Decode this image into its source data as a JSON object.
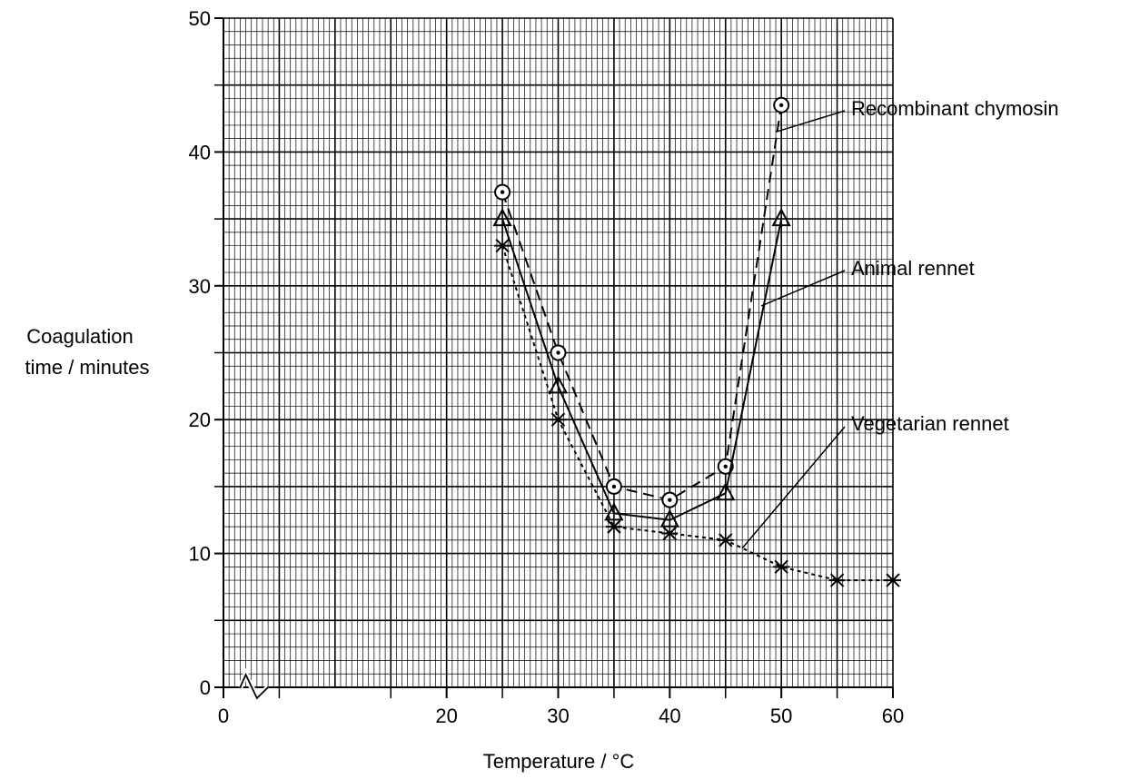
{
  "chart_data": {
    "type": "line",
    "title": "",
    "xlabel": "Temperature / °C",
    "ylabel_lines": [
      "Coagulation",
      "time / minutes"
    ],
    "xlim": [
      0,
      60
    ],
    "ylim": [
      0,
      50
    ],
    "x_axis_break": true,
    "x_ticks": [
      0,
      20,
      30,
      40,
      50,
      60
    ],
    "y_ticks": [
      0,
      10,
      20,
      30,
      40,
      50
    ],
    "grid": true,
    "legend_placement": "right (leader-line labels)",
    "series": [
      {
        "name": "Recombinant chymosin",
        "marker": "circle-dot",
        "line_style": "long-dash",
        "x": [
          25,
          30,
          35,
          40,
          45,
          50
        ],
        "y": [
          37,
          25,
          15,
          14,
          16.5,
          43.5
        ]
      },
      {
        "name": "Animal rennet",
        "marker": "triangle",
        "line_style": "solid",
        "x": [
          25,
          30,
          35,
          40,
          45,
          50
        ],
        "y": [
          35,
          22.5,
          13,
          12.5,
          14.5,
          35
        ]
      },
      {
        "name": "Vegetarian rennet",
        "marker": "star",
        "line_style": "short-dash",
        "x": [
          25,
          30,
          35,
          40,
          45,
          50,
          55,
          60
        ],
        "y": [
          33,
          20,
          12,
          11.5,
          11,
          9,
          8,
          8
        ]
      }
    ]
  }
}
